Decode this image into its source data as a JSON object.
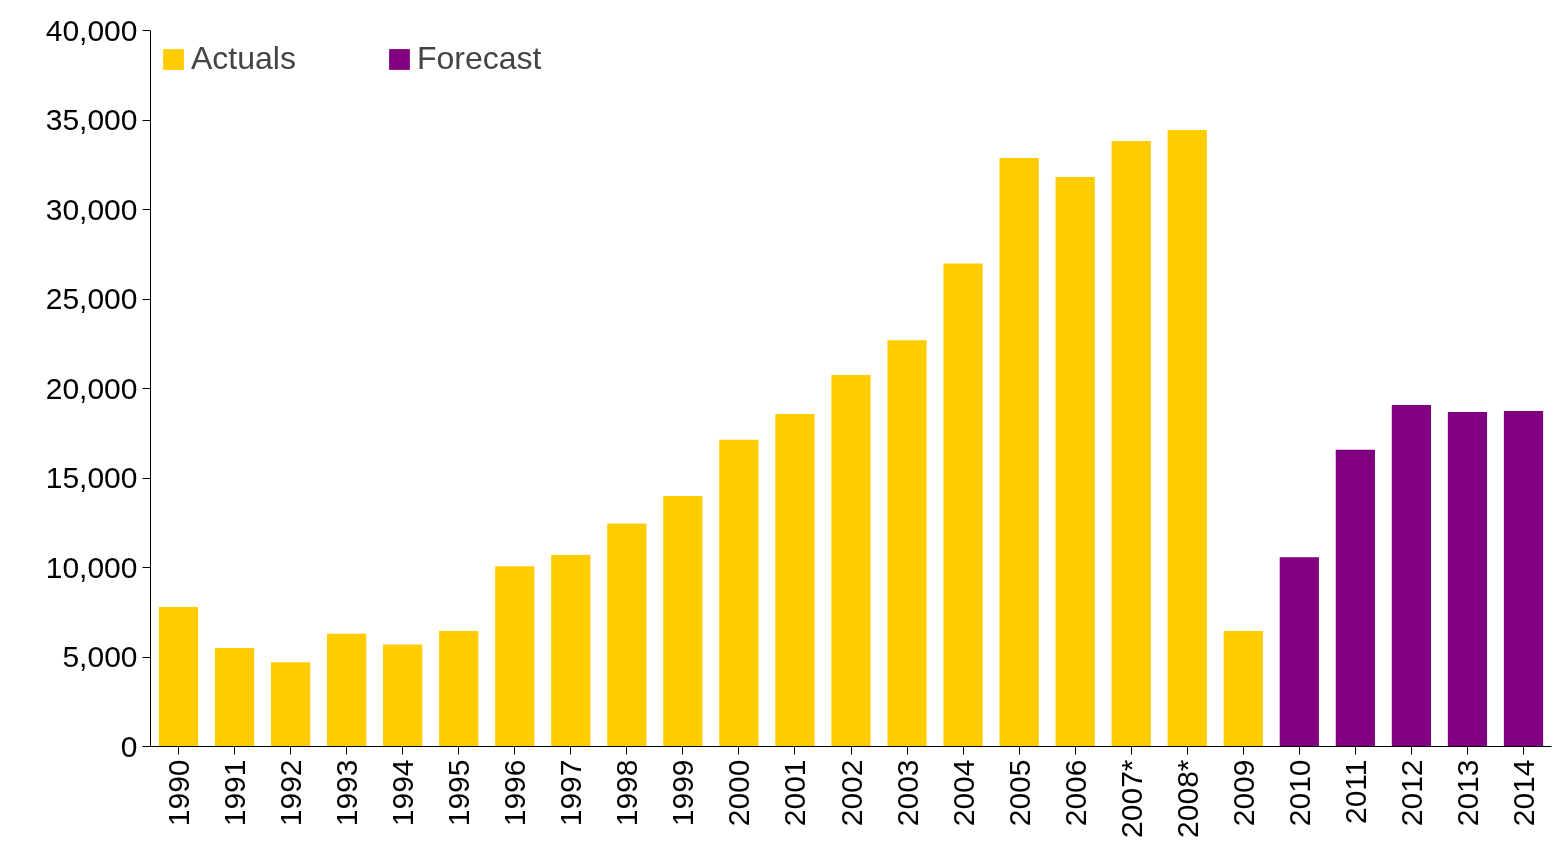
{
  "chart_data": {
    "type": "bar",
    "legend": "top left",
    "grid": false,
    "categories": [
      "1990",
      "1991",
      "1992",
      "1993",
      "1994",
      "1995",
      "1996",
      "1997",
      "1998",
      "1999",
      "2000",
      "2001",
      "2002",
      "2003",
      "2004",
      "2005",
      "2006",
      "2007*",
      "2008*",
      "2009",
      "2010",
      "2011",
      "2012",
      "2013",
      "2014"
    ],
    "series": [
      {
        "name": "Actuals",
        "color": "#ffcc00",
        "values": [
          7800,
          5500,
          4700,
          6300,
          5700,
          6450,
          10070,
          10700,
          12460,
          14000,
          17130,
          18580,
          20750,
          22700,
          26980,
          32880,
          31820,
          33820,
          34440,
          6450,
          null,
          null,
          null,
          null,
          null
        ]
      },
      {
        "name": "Forecast",
        "color": "#800080",
        "values": [
          null,
          null,
          null,
          null,
          null,
          null,
          null,
          null,
          null,
          null,
          null,
          null,
          null,
          null,
          null,
          null,
          null,
          null,
          null,
          null,
          10570,
          16580,
          19080,
          18690,
          18750
        ]
      }
    ],
    "ylim": [
      0,
      40000
    ],
    "yticks": [
      0,
      {
        "value": 5000,
        "label": "5,000"
      },
      {
        "value": 10000,
        "label": "10,000"
      },
      {
        "value": 15000,
        "label": "15,000"
      },
      {
        "value": 20000,
        "label": "20,000"
      },
      {
        "value": 25000,
        "label": "25,000"
      },
      {
        "value": 30000,
        "label": "30,000"
      },
      {
        "value": 35000,
        "label": "35,000"
      },
      {
        "value": 40000,
        "label": "40,000"
      }
    ]
  }
}
